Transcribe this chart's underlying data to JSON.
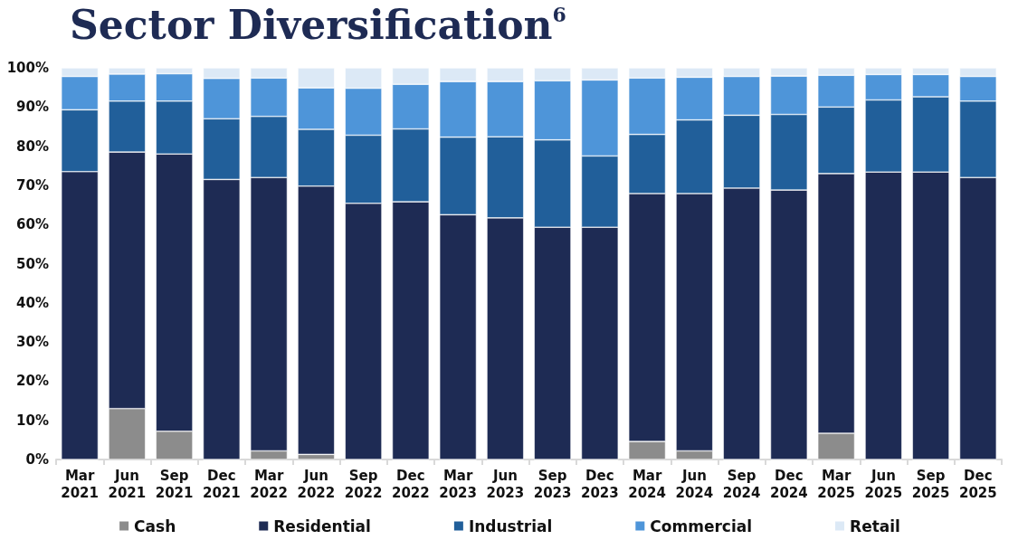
{
  "chart_data": {
    "type": "bar",
    "title": "Sector Diversification$^{6}$",
    "stacked": true,
    "legend": "bottom",
    "grid": false,
    "categories": [
      "Mar\n2021",
      "Jun\n2021",
      "Sep\n2021",
      "Dec\n2021",
      "Mar\n2022",
      "Jun\n2022",
      "Sep\n2022",
      "Dec\n2022",
      "Mar\n2023",
      "Jun\n2023",
      "Sep\n2023",
      "Dec\n2023",
      "Mar\n2024",
      "Jun\n2024",
      "Sep\n2024",
      "Dec\n2024",
      "Mar\n2025",
      "Jun\n2025",
      "Sep\n2025",
      "Dec\n2025"
    ],
    "ylim": [
      0,
      100
    ],
    "yticks": [
      {
        "value": 0,
        "label": "0%"
      },
      {
        "value": 10,
        "label": "10%"
      },
      {
        "value": 20,
        "label": "20%"
      },
      {
        "value": 30,
        "label": "30%"
      },
      {
        "value": 40,
        "label": "40%"
      },
      {
        "value": 50,
        "label": "50%"
      },
      {
        "value": 60,
        "label": "60%"
      },
      {
        "value": 70,
        "label": "70%"
      },
      {
        "value": 80,
        "label": "80%"
      },
      {
        "value": 90,
        "label": "90%"
      },
      {
        "value": 100,
        "label": "100%"
      }
    ],
    "series": [
      {
        "name": "Cash",
        "color": "#8c8c8c",
        "values": [
          0,
          13,
          7.2,
          0,
          2.2,
          1.3,
          0,
          0,
          0,
          0,
          0,
          0,
          4.6,
          2.2,
          0,
          0,
          6.7,
          0,
          0,
          0
        ]
      },
      {
        "name": "Residential",
        "color": "#1e2b54",
        "values": [
          73.5,
          65.5,
          70.8,
          71.5,
          69.8,
          68.5,
          65.4,
          65.8,
          62.5,
          61.7,
          59.3,
          59.3,
          63.3,
          65.7,
          69.3,
          68.8,
          66.3,
          73.4,
          73.4,
          72
        ]
      },
      {
        "name": "Industrial",
        "color": "#215f9a",
        "values": [
          15.8,
          13,
          13.5,
          15.5,
          15.6,
          14.5,
          17.4,
          18.6,
          19.8,
          20.7,
          22.3,
          18.2,
          15.1,
          18.8,
          18.6,
          19.3,
          17,
          18.4,
          19.2,
          19.5
        ]
      },
      {
        "name": "Commercial",
        "color": "#4e95d9",
        "values": [
          8.5,
          6.9,
          7,
          10.3,
          9.8,
          10.6,
          12,
          11.4,
          14.2,
          14.1,
          15.1,
          19.4,
          14.4,
          10.9,
          9.9,
          9.8,
          8.1,
          6.5,
          5.7,
          6.3
        ]
      },
      {
        "name": "Retail",
        "color": "#dce9f6",
        "values": [
          2.2,
          1.6,
          1.5,
          2.7,
          2.6,
          5.1,
          5.2,
          4.2,
          3.5,
          3.5,
          3.3,
          3.1,
          2.6,
          2.4,
          2.2,
          2.1,
          1.9,
          1.7,
          1.7,
          2.2
        ]
      }
    ]
  }
}
